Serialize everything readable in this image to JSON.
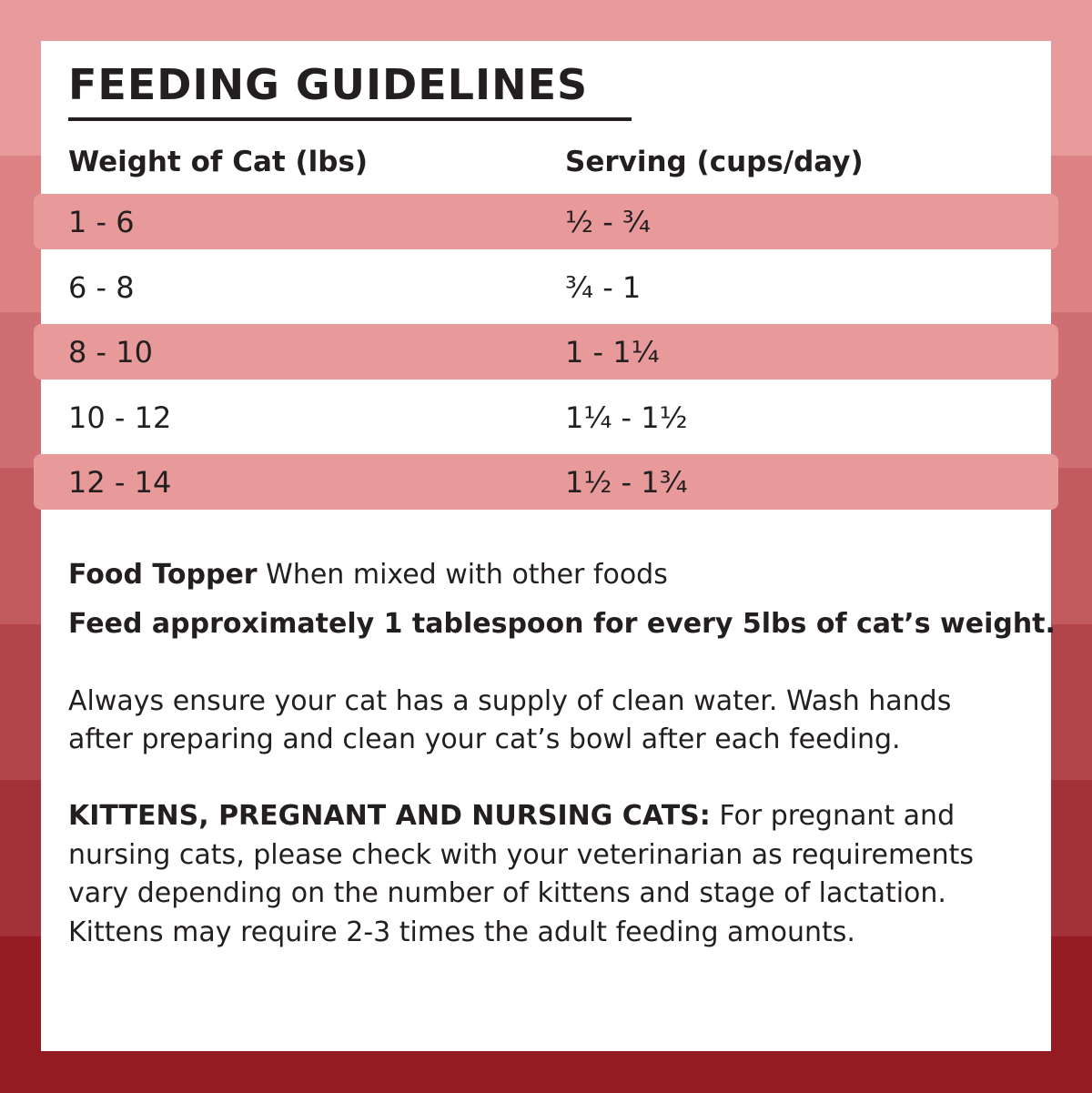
{
  "colors": {
    "bands": [
      "#e89b9c",
      "#dc8285",
      "#d06f73",
      "#c25b60",
      "#b2454b",
      "#a3313a",
      "#951b22"
    ],
    "row_highlight": "#e89a9a",
    "card": "#ffffff",
    "text": "#231f20"
  },
  "title": "FEEDING GUIDELINES",
  "table": {
    "headers": [
      "Weight of Cat (lbs)",
      "Serving (cups/day)"
    ],
    "rows": [
      {
        "weight": "1 - 6",
        "serving": "½ - ¾",
        "highlight": true
      },
      {
        "weight": "6 - 8",
        "serving": "¾ - 1",
        "highlight": false
      },
      {
        "weight": "8 - 10",
        "serving": "1 - 1¼",
        "highlight": true
      },
      {
        "weight": "10 - 12",
        "serving": "1¼ - 1½",
        "highlight": false
      },
      {
        "weight": "12 - 14",
        "serving": "1½ - 1¾",
        "highlight": true
      }
    ]
  },
  "topper": {
    "label": "Food Topper",
    "text": "When mixed with other foods",
    "instruction": "Feed approximately 1 tablespoon for every 5lbs of cat’s weight."
  },
  "water_note": [
    "Always ensure your cat has a supply of clean water. Wash hands",
    "after preparing and clean your cat’s bowl after each feeding."
  ],
  "kittens": {
    "label": "KITTENS, PREGNANT AND NURSING CATS:",
    "lines": [
      "For pregnant and",
      "nursing cats, please check with your veterinarian as requirements",
      "vary depending on the number of kittens and stage of lactation.",
      "Kittens may require 2-3 times the adult feeding amounts."
    ]
  }
}
